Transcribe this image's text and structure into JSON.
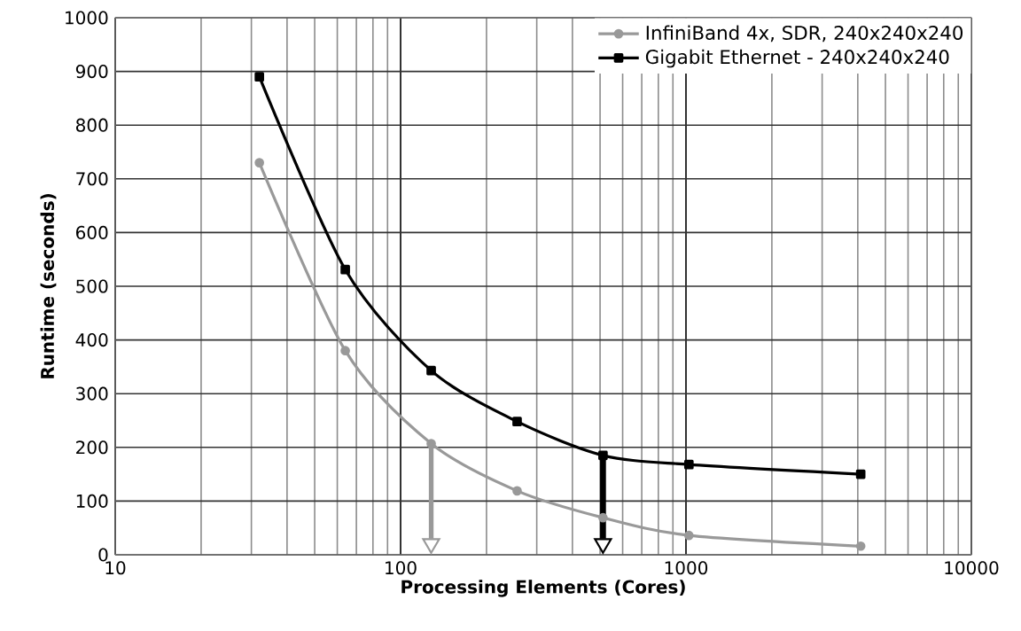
{
  "chart_data": {
    "type": "line",
    "xlabel": "Processing Elements (Cores)",
    "ylabel": "Runtime (seconds)",
    "log": "x",
    "xlim": [
      10,
      10000
    ],
    "xticks": [
      10,
      100,
      1000,
      10000
    ],
    "ylim": [
      0,
      1000
    ],
    "yticks": [
      0,
      100,
      200,
      300,
      400,
      500,
      600,
      700,
      800,
      900,
      1000
    ],
    "grid": true,
    "legend": "top right",
    "series": [
      {
        "name": "InfiniBand 4x, SDR, 240x240x240",
        "color": "#999999",
        "marker": "circle",
        "x": [
          32,
          64,
          128,
          256,
          512,
          1024,
          4096
        ],
        "values": [
          730,
          380,
          207,
          119,
          69,
          36,
          16
        ]
      },
      {
        "name": "Gigabit Ethernet - 240x240x240",
        "color": "#000000",
        "marker": "square",
        "x": [
          32,
          64,
          128,
          256,
          512,
          1024,
          4096
        ],
        "values": [
          890,
          531,
          343,
          248,
          185,
          168,
          150
        ]
      }
    ],
    "ref_lines": [
      {
        "axis": "x",
        "value": 128,
        "color": "#999999"
      },
      {
        "axis": "x",
        "value": 512,
        "color": "#000000"
      }
    ]
  }
}
